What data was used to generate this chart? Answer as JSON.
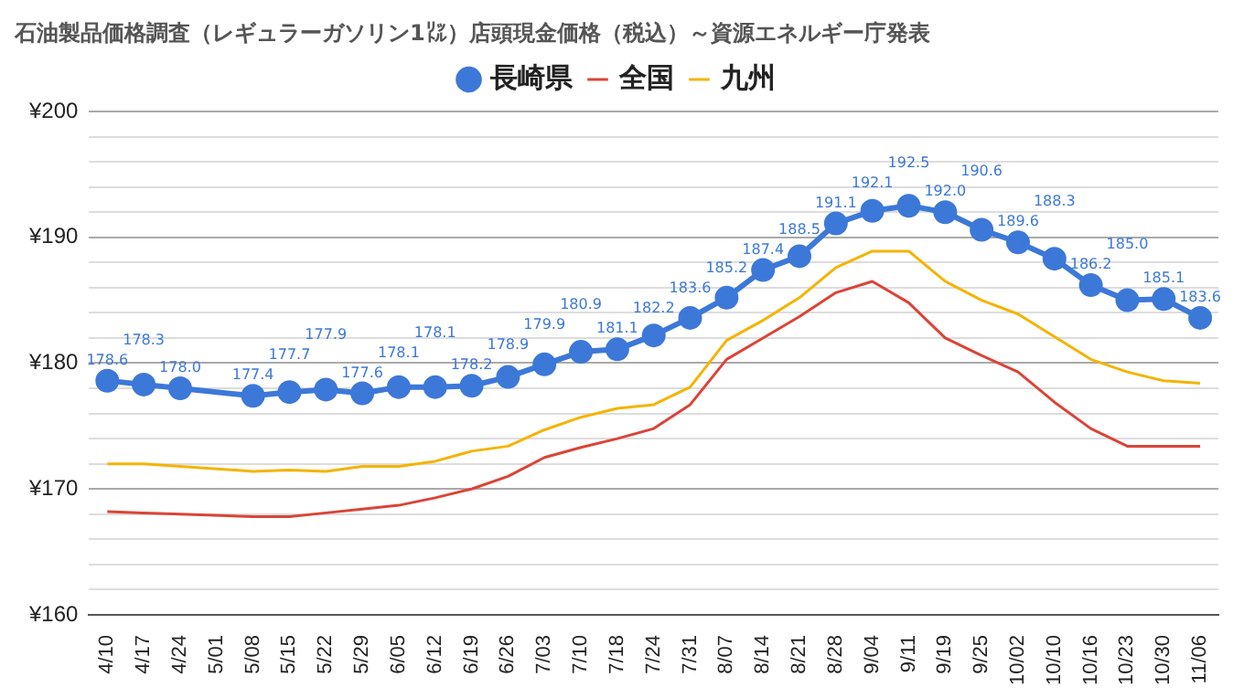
{
  "chart_data": {
    "type": "line",
    "title": "石油製品価格調査（レギュラーガソリン1㍑）店頭現金価格（税込）～資源エネルギー庁発表",
    "categories": [
      "4/10",
      "4/17",
      "4/24",
      "5/01",
      "5/08",
      "5/15",
      "5/22",
      "5/29",
      "6/05",
      "6/12",
      "6/19",
      "6/26",
      "7/03",
      "7/10",
      "7/18",
      "7/24",
      "7/31",
      "8/07",
      "8/14",
      "8/21",
      "8/28",
      "9/04",
      "9/11",
      "9/19",
      "9/25",
      "10/02",
      "10/10",
      "10/16",
      "10/23",
      "10/30",
      "11/06"
    ],
    "series": [
      {
        "name": "長崎県",
        "color": "#3c78d8",
        "marker": "circle",
        "value_labels": [
          "178.6",
          "178.3",
          "178.0",
          null,
          "177.4",
          "177.7",
          "177.9",
          "177.6",
          "178.1",
          "178.1",
          "178.2",
          "178.9",
          "179.9",
          "180.9",
          "181.1",
          "182.2",
          "183.6",
          "185.2",
          "187.4",
          "188.5",
          "191.1",
          "192.1",
          "192.5",
          "192.0",
          "190.6",
          "189.6",
          "188.3",
          "186.2",
          "185.0",
          "185.1",
          "183.6"
        ],
        "values": [
          178.6,
          178.3,
          178.0,
          null,
          177.4,
          177.7,
          177.9,
          177.6,
          178.1,
          178.1,
          178.2,
          178.9,
          179.9,
          180.9,
          181.1,
          182.2,
          183.6,
          185.2,
          187.4,
          188.5,
          191.1,
          192.1,
          192.5,
          192.0,
          190.6,
          189.6,
          188.3,
          186.2,
          185.0,
          185.1,
          183.6
        ]
      },
      {
        "name": "全国",
        "color": "#db4437",
        "marker": "none",
        "values": [
          168.2,
          168.1,
          168.0,
          null,
          167.8,
          167.8,
          168.1,
          168.4,
          168.7,
          169.3,
          170.0,
          171.0,
          172.5,
          173.3,
          174.0,
          174.8,
          176.7,
          180.3,
          182.0,
          183.7,
          185.6,
          186.5,
          184.8,
          182.0,
          180.6,
          179.3,
          176.9,
          174.8,
          173.4,
          173.4,
          173.4
        ]
      },
      {
        "name": "九州",
        "color": "#f4b400",
        "marker": "none",
        "values": [
          172.0,
          172.0,
          171.8,
          null,
          171.4,
          171.5,
          171.4,
          171.8,
          171.8,
          172.2,
          173.0,
          173.4,
          174.7,
          175.7,
          176.4,
          176.7,
          178.1,
          181.8,
          183.4,
          185.2,
          187.6,
          188.9,
          188.9,
          186.5,
          185.0,
          183.9,
          182.1,
          180.3,
          179.3,
          178.6,
          178.4
        ]
      }
    ],
    "ylim": [
      160,
      200
    ],
    "yticks": [
      {
        "value": 160,
        "label": "¥160"
      },
      {
        "value": 162,
        "label": null
      },
      {
        "value": 164,
        "label": null
      },
      {
        "value": 166,
        "label": null
      },
      {
        "value": 168,
        "label": null
      },
      {
        "value": 170,
        "label": "¥170"
      },
      {
        "value": 172,
        "label": null
      },
      {
        "value": 174,
        "label": null
      },
      {
        "value": 176,
        "label": null
      },
      {
        "value": 178,
        "label": null
      },
      {
        "value": 180,
        "label": "¥180"
      },
      {
        "value": 182,
        "label": null
      },
      {
        "value": 184,
        "label": null
      },
      {
        "value": 186,
        "label": null
      },
      {
        "value": 188,
        "label": null
      },
      {
        "value": 190,
        "label": "¥190"
      },
      {
        "value": 192,
        "label": null
      },
      {
        "value": 194,
        "label": null
      },
      {
        "value": 196,
        "label": null
      },
      {
        "value": 198,
        "label": null
      },
      {
        "value": 200,
        "label": "¥200"
      }
    ],
    "grid": "y",
    "legend": "top",
    "line_style": "solid"
  }
}
